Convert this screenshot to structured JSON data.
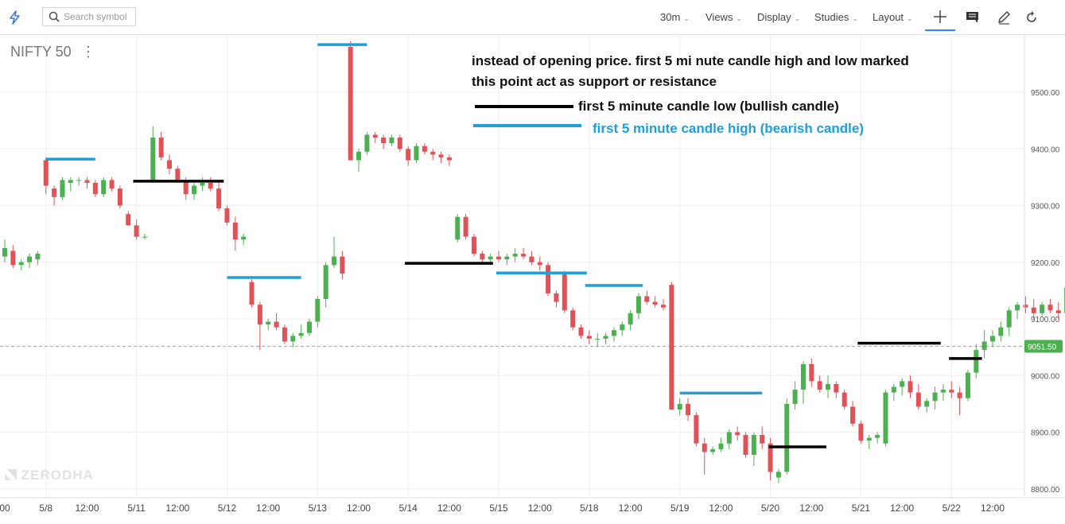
{
  "toolbar": {
    "search_placeholder": "Search symbol",
    "interval": "30m",
    "views": "Views",
    "display": "Display",
    "studies": "Studies",
    "layout": "Layout"
  },
  "chart_title": "NIFTY 50",
  "watermark": "ZERODHA",
  "annotations": {
    "line1": "instead of opening price. first 5 mi nute  candle high and low marked",
    "line2": "this point act as support or resistance",
    "legend_low": "first 5 minute candle low  (bullish candle)",
    "legend_high": "first 5 minute candle high (bearish candle)"
  },
  "colors": {
    "up": "#4caf50",
    "down": "#e05257",
    "low_marker": "#000000",
    "high_marker": "#1e9fdc",
    "last_price": "#4caf50",
    "grid": "#eeeeee"
  },
  "chart_data": {
    "type": "candlestick",
    "y_ticks": [
      "8800.00",
      "8900.00",
      "9000.00",
      "9100.00",
      "9200.00",
      "9300.00",
      "9400.00",
      "9500.00"
    ],
    "y_range": [
      8790,
      9600
    ],
    "last_price": "9051.50",
    "x_ticks": [
      {
        "slot": 0,
        "label": "00"
      },
      {
        "slot": 5,
        "label": "5/8"
      },
      {
        "slot": 10,
        "label": "12:00"
      },
      {
        "slot": 16,
        "label": "5/11"
      },
      {
        "slot": 21,
        "label": "12:00"
      },
      {
        "slot": 27,
        "label": "5/12"
      },
      {
        "slot": 32,
        "label": "12:00"
      },
      {
        "slot": 38,
        "label": "5/13"
      },
      {
        "slot": 43,
        "label": "12:00"
      },
      {
        "slot": 49,
        "label": "5/14"
      },
      {
        "slot": 54,
        "label": "12:00"
      },
      {
        "slot": 60,
        "label": "5/15"
      },
      {
        "slot": 65,
        "label": "12:00"
      },
      {
        "slot": 71,
        "label": "5/18"
      },
      {
        "slot": 76,
        "label": "12:00"
      },
      {
        "slot": 82,
        "label": "5/19"
      },
      {
        "slot": 87,
        "label": "12:00"
      },
      {
        "slot": 93,
        "label": "5/20"
      },
      {
        "slot": 98,
        "label": "12:00"
      },
      {
        "slot": 104,
        "label": "5/21"
      },
      {
        "slot": 109,
        "label": "12:00"
      },
      {
        "slot": 115,
        "label": "5/22"
      },
      {
        "slot": 120,
        "label": "12:00"
      }
    ],
    "candles": [
      [
        9210,
        9240,
        9200,
        9225
      ],
      [
        9220,
        9230,
        9190,
        9195
      ],
      [
        9195,
        9205,
        9185,
        9200
      ],
      [
        9200,
        9215,
        9190,
        9210
      ],
      [
        9205,
        9220,
        9195,
        9215
      ],
      [
        9380,
        9385,
        9320,
        9335
      ],
      [
        9330,
        9335,
        9300,
        9315
      ],
      [
        9315,
        9350,
        9310,
        9345
      ],
      [
        9340,
        9350,
        9325,
        9345
      ],
      [
        9345,
        9350,
        9335,
        9345
      ],
      [
        9345,
        9350,
        9330,
        9340
      ],
      [
        9340,
        9345,
        9315,
        9320
      ],
      [
        9320,
        9350,
        9315,
        9345
      ],
      [
        9345,
        9350,
        9325,
        9330
      ],
      [
        9330,
        9335,
        9295,
        9300
      ],
      [
        9285,
        9290,
        9265,
        9265
      ],
      [
        9265,
        9275,
        9240,
        9245
      ],
      [
        9245,
        9250,
        9240,
        9245
      ],
      [
        9345,
        9440,
        9340,
        9420
      ],
      [
        9420,
        9430,
        9380,
        9385
      ],
      [
        9380,
        9390,
        9355,
        9365
      ],
      [
        9365,
        9370,
        9340,
        9345
      ],
      [
        9345,
        9350,
        9310,
        9320
      ],
      [
        9320,
        9340,
        9310,
        9335
      ],
      [
        9335,
        9350,
        9325,
        9340
      ],
      [
        9340,
        9350,
        9325,
        9330
      ],
      [
        9330,
        9340,
        9290,
        9295
      ],
      [
        9295,
        9300,
        9265,
        9270
      ],
      [
        9270,
        9280,
        9220,
        9240
      ],
      [
        9240,
        9250,
        9230,
        9245
      ],
      [
        9165,
        9170,
        9120,
        9125
      ],
      [
        9125,
        9130,
        9045,
        9090
      ],
      [
        9090,
        9100,
        9080,
        9095
      ],
      [
        9095,
        9110,
        9080,
        9085
      ],
      [
        9085,
        9090,
        9055,
        9060
      ],
      [
        9060,
        9075,
        9050,
        9070
      ],
      [
        9070,
        9090,
        9065,
        9075
      ],
      [
        9075,
        9100,
        9070,
        9095
      ],
      [
        9095,
        9140,
        9085,
        9135
      ],
      [
        9135,
        9200,
        9120,
        9195
      ],
      [
        9195,
        9245,
        9190,
        9210
      ],
      [
        9210,
        9220,
        9170,
        9180
      ],
      [
        9580,
        9590,
        9380,
        9380
      ],
      [
        9380,
        9400,
        9360,
        9395
      ],
      [
        9395,
        9430,
        9390,
        9425
      ],
      [
        9425,
        9430,
        9410,
        9420
      ],
      [
        9420,
        9425,
        9400,
        9410
      ],
      [
        9410,
        9425,
        9405,
        9420
      ],
      [
        9420,
        9425,
        9395,
        9400
      ],
      [
        9400,
        9405,
        9370,
        9380
      ],
      [
        9380,
        9410,
        9375,
        9405
      ],
      [
        9405,
        9410,
        9390,
        9395
      ],
      [
        9395,
        9400,
        9380,
        9390
      ],
      [
        9390,
        9395,
        9375,
        9385
      ],
      [
        9385,
        9390,
        9370,
        9380
      ],
      [
        9240,
        9285,
        9235,
        9280
      ],
      [
        9280,
        9285,
        9240,
        9245
      ],
      [
        9245,
        9250,
        9210,
        9215
      ],
      [
        9215,
        9220,
        9200,
        9205
      ],
      [
        9205,
        9215,
        9195,
        9210
      ],
      [
        9210,
        9220,
        9200,
        9205
      ],
      [
        9205,
        9215,
        9195,
        9210
      ],
      [
        9210,
        9225,
        9200,
        9215
      ],
      [
        9215,
        9225,
        9205,
        9210
      ],
      [
        9210,
        9220,
        9195,
        9200
      ],
      [
        9200,
        9210,
        9185,
        9195
      ],
      [
        9195,
        9200,
        9140,
        9145
      ],
      [
        9145,
        9150,
        9120,
        9130
      ],
      [
        9180,
        9185,
        9110,
        9115
      ],
      [
        9115,
        9120,
        9080,
        9085
      ],
      [
        9085,
        9090,
        9065,
        9070
      ],
      [
        9070,
        9080,
        9055,
        9065
      ],
      [
        9065,
        9075,
        9050,
        9065
      ],
      [
        9065,
        9075,
        9055,
        9070
      ],
      [
        9070,
        9085,
        9060,
        9080
      ],
      [
        9080,
        9095,
        9070,
        9090
      ],
      [
        9090,
        9115,
        9080,
        9110
      ],
      [
        9110,
        9145,
        9100,
        9140
      ],
      [
        9140,
        9150,
        9125,
        9130
      ],
      [
        9130,
        9140,
        9120,
        9125
      ],
      [
        9125,
        9135,
        9115,
        9120
      ],
      [
        9160,
        9165,
        8940,
        8940
      ],
      [
        8940,
        8960,
        8930,
        8950
      ],
      [
        8950,
        8960,
        8920,
        8930
      ],
      [
        8930,
        8935,
        8875,
        8880
      ],
      [
        8880,
        8890,
        8825,
        8865
      ],
      [
        8865,
        8875,
        8860,
        8870
      ],
      [
        8870,
        8890,
        8865,
        8880
      ],
      [
        8880,
        8905,
        8870,
        8900
      ],
      [
        8900,
        8910,
        8885,
        8895
      ],
      [
        8895,
        8900,
        8855,
        8860
      ],
      [
        8860,
        8900,
        8840,
        8895
      ],
      [
        8895,
        8910,
        8870,
        8880
      ],
      [
        8880,
        8890,
        8815,
        8830
      ],
      [
        8820,
        8835,
        8810,
        8830
      ],
      [
        8830,
        8960,
        8825,
        8950
      ],
      [
        8950,
        8990,
        8940,
        8975
      ],
      [
        8975,
        9025,
        8950,
        9020
      ],
      [
        9020,
        9030,
        8980,
        8990
      ],
      [
        8990,
        9000,
        8970,
        8975
      ],
      [
        8975,
        9000,
        8960,
        8985
      ],
      [
        8985,
        8990,
        8960,
        8970
      ],
      [
        8970,
        8975,
        8940,
        8945
      ],
      [
        8945,
        8955,
        8910,
        8915
      ],
      [
        8915,
        8920,
        8880,
        8885
      ],
      [
        8885,
        8895,
        8870,
        8890
      ],
      [
        8890,
        8900,
        8880,
        8895
      ],
      [
        8880,
        8975,
        8875,
        8970
      ],
      [
        8970,
        8985,
        8955,
        8980
      ],
      [
        8980,
        8995,
        8965,
        8990
      ],
      [
        8990,
        9000,
        8960,
        8970
      ],
      [
        8970,
        8985,
        8940,
        8945
      ],
      [
        8945,
        8960,
        8935,
        8955
      ],
      [
        8955,
        8980,
        8940,
        8970
      ],
      [
        8970,
        8985,
        8955,
        8975
      ],
      [
        8975,
        8990,
        8960,
        8970
      ],
      [
        8970,
        8980,
        8930,
        8960
      ],
      [
        8960,
        9010,
        8955,
        9005
      ],
      [
        9005,
        9055,
        8995,
        9045
      ],
      [
        9045,
        9080,
        9030,
        9060
      ],
      [
        9060,
        9080,
        9050,
        9070
      ],
      [
        9070,
        9095,
        9060,
        9085
      ],
      [
        9085,
        9120,
        9070,
        9115
      ],
      [
        9115,
        9130,
        9100,
        9125
      ],
      [
        9125,
        9140,
        9110,
        9120
      ],
      [
        9120,
        9135,
        9100,
        9110
      ],
      [
        9110,
        9130,
        9105,
        9125
      ],
      [
        9125,
        9135,
        9110,
        9115
      ],
      [
        9115,
        9130,
        9100,
        9110
      ],
      [
        9110,
        9160,
        9100,
        9155
      ],
      [
        9155,
        9175,
        9140,
        9160
      ],
      [
        9160,
        9170,
        9135,
        9145
      ],
      [
        9145,
        9150,
        9085,
        9110
      ],
      [
        9100,
        9120,
        9080,
        9105
      ],
      [
        9105,
        9110,
        9060,
        9065
      ],
      [
        9065,
        9080,
        9050,
        9070
      ],
      [
        9070,
        9080,
        9040,
        9055
      ],
      [
        9110,
        9145,
        9040,
        9075
      ],
      [
        9075,
        9080,
        9020,
        9030
      ],
      [
        9030,
        9035,
        8975,
        8995
      ],
      [
        8995,
        9040,
        8985,
        9035
      ],
      [
        9035,
        9045,
        9005,
        9010
      ],
      [
        9010,
        9030,
        8995,
        9020
      ],
      [
        9020,
        9025,
        8985,
        9000
      ],
      [
        9000,
        9020,
        8990,
        9015
      ],
      [
        9015,
        9050,
        9010,
        9040
      ],
      [
        9040,
        9060,
        9030,
        9050
      ],
      [
        9050,
        9060,
        9020,
        9030
      ],
      [
        9030,
        9040,
        9020,
        9035
      ],
      [
        9035,
        9060,
        9030,
        9050
      ],
      [
        9050,
        9065,
        9040,
        9055
      ]
    ],
    "high_marks": [
      {
        "price": 9382,
        "from": 5,
        "to": 11
      },
      {
        "price": 9173,
        "from": 27,
        "to": 36
      },
      {
        "price": 9584,
        "from": 38,
        "to": 44
      },
      {
        "price": 9181,
        "from": 59.7,
        "to": 70.7
      },
      {
        "price": 9159,
        "from": 70.5,
        "to": 77.5
      },
      {
        "price": 8969,
        "from": 82,
        "to": 92
      }
    ],
    "low_marks": [
      {
        "price": 9343,
        "from": 15.6,
        "to": 26.6
      },
      {
        "price": 9198,
        "from": 48.6,
        "to": 59.3
      },
      {
        "price": 8874,
        "from": 92.8,
        "to": 99.8
      },
      {
        "price": 9057,
        "from": 103.6,
        "to": 113.7
      },
      {
        "price": 9030,
        "from": 114.7,
        "to": 118.7
      }
    ]
  }
}
